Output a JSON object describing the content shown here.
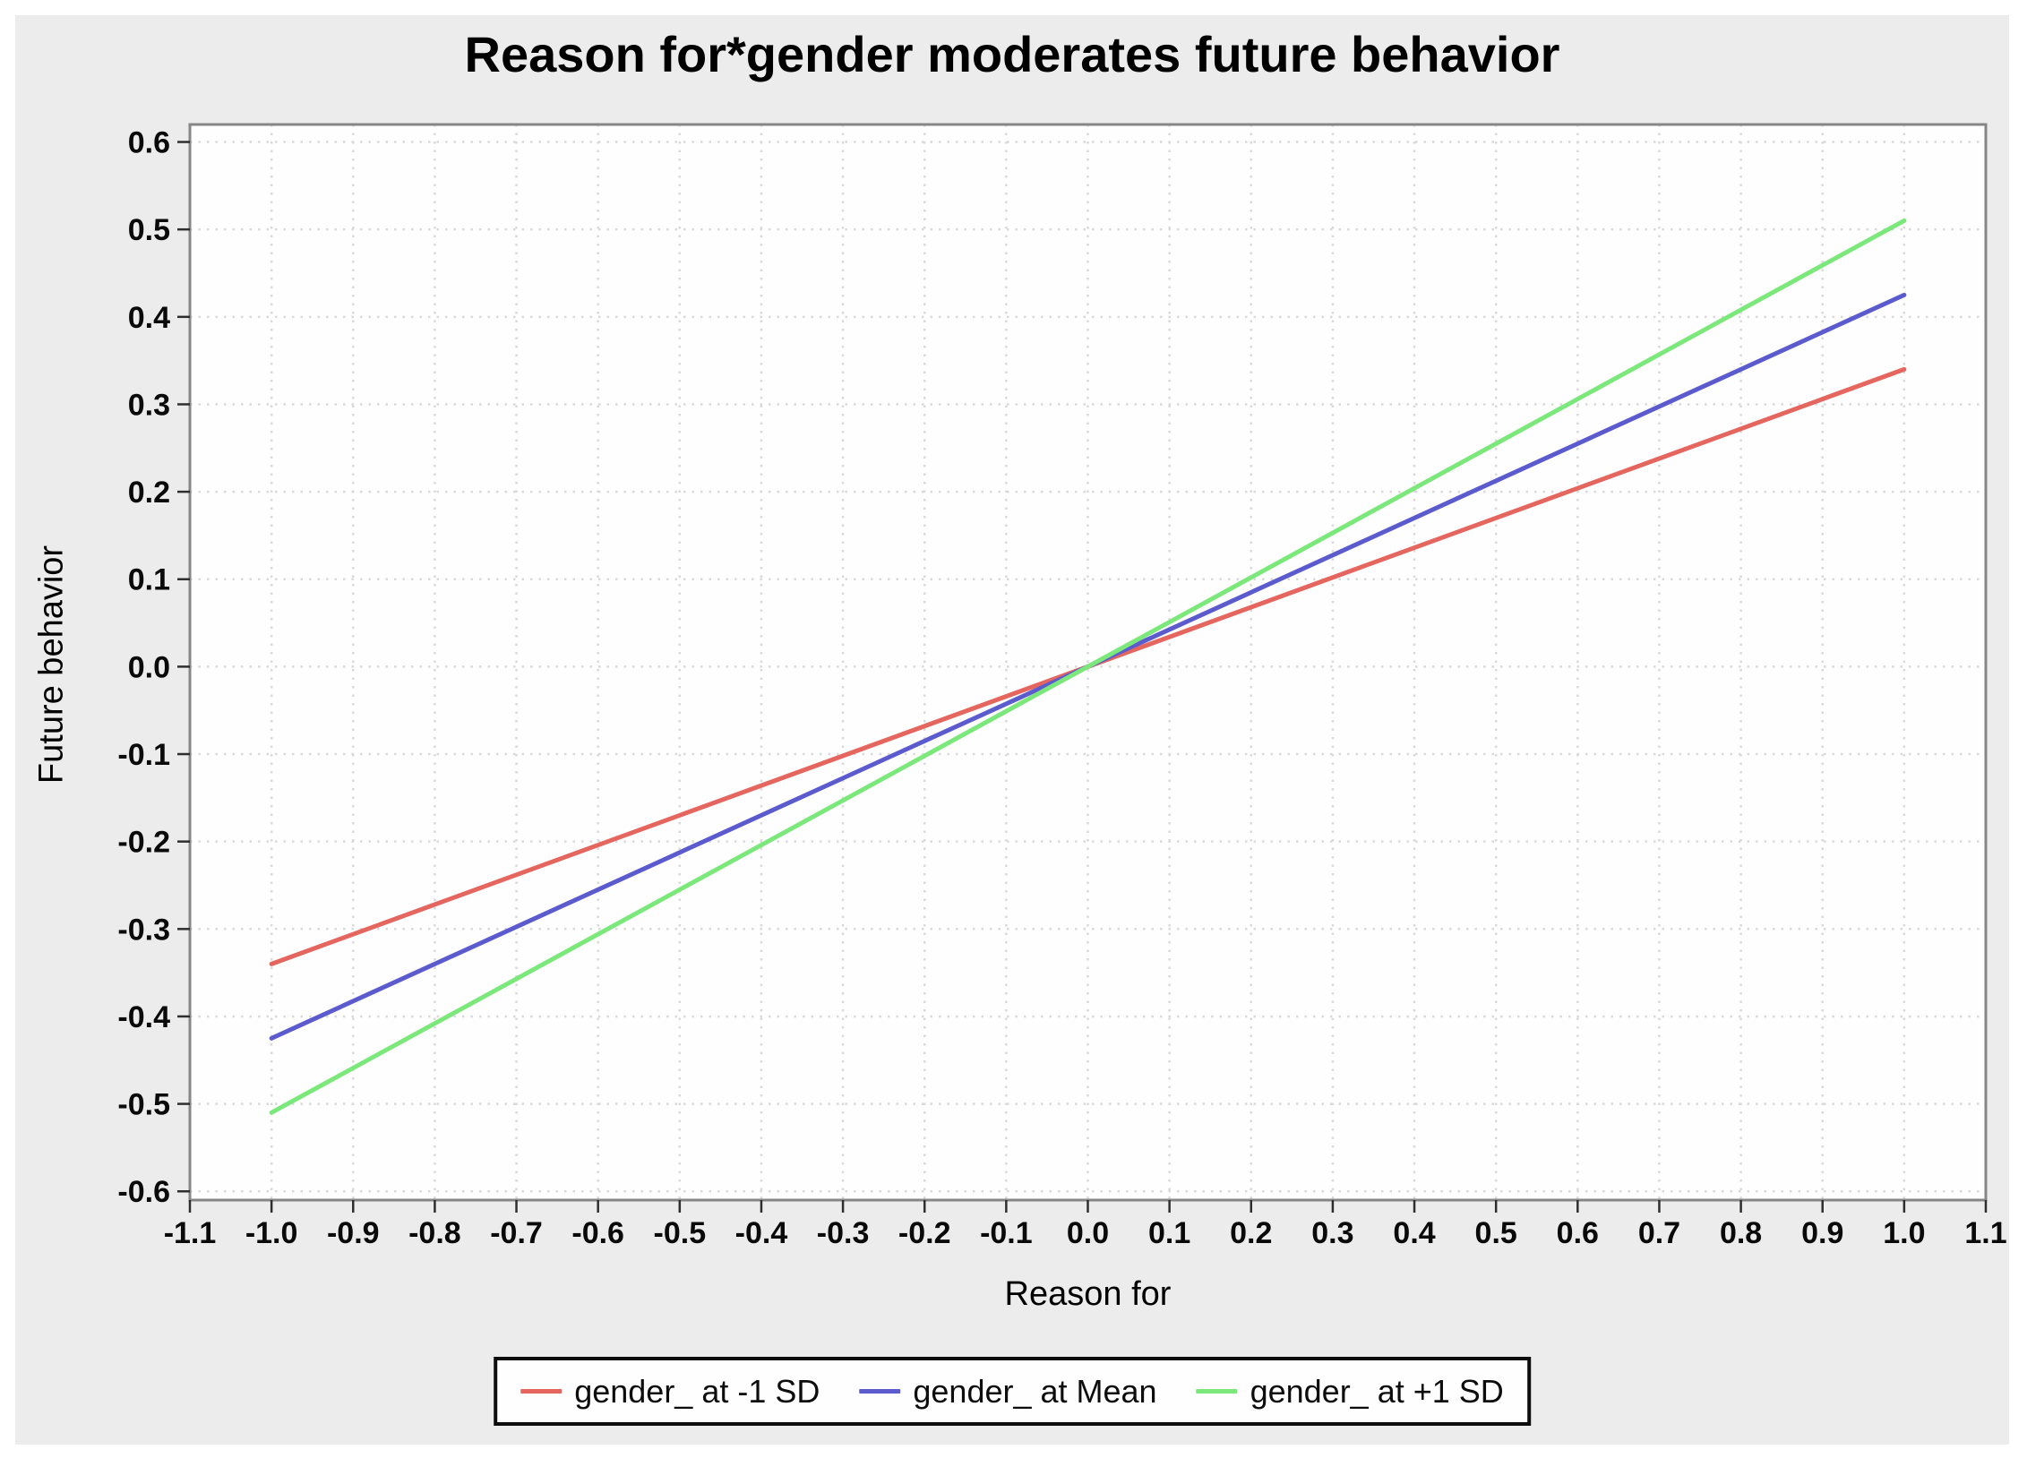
{
  "chart_data": {
    "type": "line",
    "title": "Reason for*gender moderates future behavior",
    "xlabel": "Reason for",
    "ylabel": "Future behavior",
    "xlim": [
      -1.1,
      1.1
    ],
    "ylim": [
      -0.61,
      0.62
    ],
    "xticks": [
      "-1.1",
      "-1.0",
      "-0.9",
      "-0.8",
      "-0.7",
      "-0.6",
      "-0.5",
      "-0.4",
      "-0.3",
      "-0.2",
      "-0.1",
      "0.0",
      "0.1",
      "0.2",
      "0.3",
      "0.4",
      "0.5",
      "0.6",
      "0.7",
      "0.8",
      "0.9",
      "1.0",
      "1.1"
    ],
    "yticks": [
      "0.6",
      "0.5",
      "0.4",
      "0.3",
      "0.2",
      "0.1",
      "0.0",
      "-0.1",
      "-0.2",
      "-0.3",
      "-0.4",
      "-0.5",
      "-0.6"
    ],
    "grid": "dotted",
    "legend_position": "bottom-outside",
    "series": [
      {
        "name": "gender_ at -1 SD",
        "color": "#e5665f",
        "x": [
          -1.0,
          1.0
        ],
        "y": [
          -0.34,
          0.34
        ]
      },
      {
        "name": "gender_ at Mean",
        "color": "#5b5bce",
        "x": [
          -1.0,
          1.0
        ],
        "y": [
          -0.425,
          0.425
        ]
      },
      {
        "name": "gender_ at +1 SD",
        "color": "#7ce87c",
        "x": [
          -1.0,
          1.0
        ],
        "y": [
          -0.51,
          0.51
        ]
      }
    ],
    "colors": {
      "panel_bg": "#ececec",
      "plot_bg": "#fefefe",
      "plot_border": "#868686",
      "gridline": "#d9d9d9",
      "tick": "#2e2e2e",
      "tick_label": "#0a0a0a"
    }
  }
}
